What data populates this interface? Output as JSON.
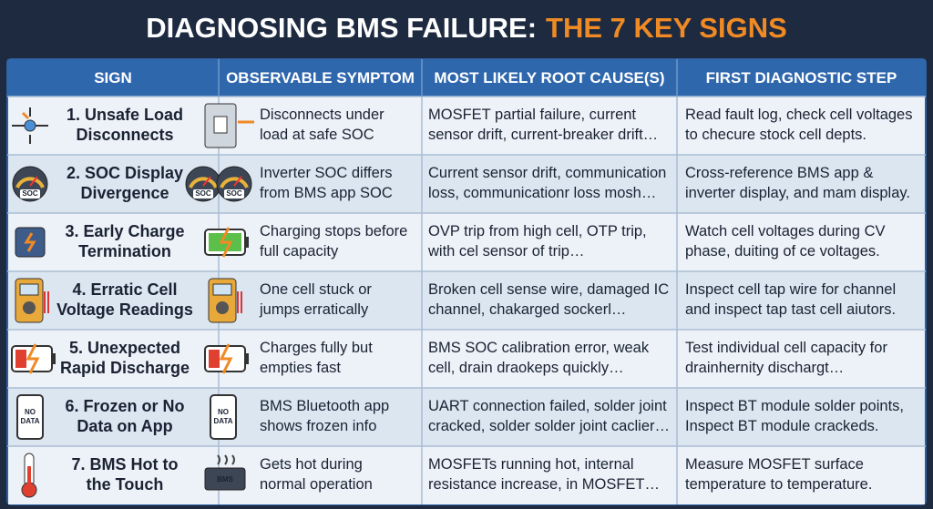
{
  "title": {
    "main": "DIAGNOSING BMS FAILURE:",
    "highlight": "THE 7 KEY SIGNS"
  },
  "table": {
    "headers": [
      "SIGN",
      "OBSERVABLE SYMPTOM",
      "MOST LIKELY ROOT CAUSE(S)",
      "FIRST DIAGNOSTIC STEP"
    ],
    "rows": [
      {
        "sign": [
          "1. Unsafe Load",
          "Disconnects"
        ],
        "symptom": [
          "Disconnects under",
          "load at safe SOC"
        ],
        "cause": [
          "MOSFET partial failure, current",
          "sensor drift, current-breaker drift…"
        ],
        "step": [
          "Read fault log, check cell voltages",
          "to checure stock cell depts."
        ]
      },
      {
        "sign": [
          "2. SOC Display",
          "Divergence"
        ],
        "symptom": [
          "Inverter SOC differs",
          "from BMS app SOC"
        ],
        "cause": [
          "Current sensor drift, communication",
          "loss, communicationr loss mosh…"
        ],
        "step": [
          "Cross-reference BMS app &",
          "inverter display, and mam display."
        ],
        "sign_icon": [
          "SOC"
        ],
        "symptom_icon": [
          "SOC",
          "SOC"
        ]
      },
      {
        "sign": [
          "3. Early Charge",
          "Termination"
        ],
        "symptom": [
          "Charging stops before",
          "full capacity"
        ],
        "cause": [
          "OVP trip from high cell, OTP trip,",
          "with cel sensor of trip…"
        ],
        "step": [
          "Watch cell voltages during CV",
          "phase, duiting of ce voltages."
        ]
      },
      {
        "sign": [
          "4. Erratic Cell",
          "Voltage Readings"
        ],
        "symptom": [
          "One cell stuck or",
          "jumps erratically"
        ],
        "cause": [
          "Broken cell sense wire, damaged IC",
          "channel, chakarged sockerl…"
        ],
        "step": [
          "Inspect cell tap wire for channel",
          "and inspect tap tast cell aiutors."
        ]
      },
      {
        "sign": [
          "5. Unexpected",
          "Rapid Discharge"
        ],
        "symptom": [
          "Charges fully but",
          "empties fast"
        ],
        "cause": [
          "BMS SOC calibration error, weak",
          "cell, drain draokeps quickly…"
        ],
        "step": [
          "Test individual cell capacity for",
          "drainhernity dischargt…"
        ]
      },
      {
        "sign": [
          "6. Frozen or No",
          "Data on App"
        ],
        "symptom": [
          "BMS Bluetooth app",
          "shows frozen info"
        ],
        "cause": [
          "UART connection failed, solder joint",
          "cracked, solder solder joint caclier…"
        ],
        "step": [
          "Inspect BT module solder points,",
          "Inspect BT module crackeds."
        ],
        "sign_icon": [
          "NO",
          "DATA"
        ],
        "symptom_icon": [
          "NO",
          "DATA"
        ]
      },
      {
        "sign": [
          "7. BMS Hot to",
          "the Touch"
        ],
        "symptom": [
          "Gets hot during",
          "normal operation"
        ],
        "cause": [
          "MOSFETs running hot, internal",
          "resistance increase, in MOSFET…"
        ],
        "step": [
          "Measure MOSFET surface",
          "temperature to temperature."
        ],
        "symptom_icon": [
          "BMS"
        ]
      }
    ]
  }
}
